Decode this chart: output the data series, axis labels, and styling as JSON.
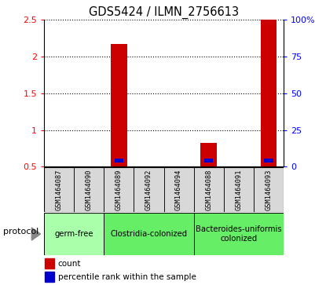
{
  "title": "GDS5424 / ILMN_2756613",
  "samples": [
    "GSM1464087",
    "GSM1464090",
    "GSM1464089",
    "GSM1464092",
    "GSM1464094",
    "GSM1464088",
    "GSM1464091",
    "GSM1464093"
  ],
  "count_values": [
    0.5,
    0.5,
    2.17,
    0.5,
    0.5,
    0.83,
    0.5,
    2.5
  ],
  "percentile_values": [
    0.0,
    0.0,
    0.075,
    0.0,
    0.0,
    0.075,
    0.0,
    0.075
  ],
  "bar_base": 0.5,
  "ylim": [
    0.5,
    2.5
  ],
  "yticks_left": [
    0.5,
    1.0,
    1.5,
    2.0,
    2.5
  ],
  "yticks_right": [
    0,
    25,
    50,
    75,
    100
  ],
  "count_color": "#cc0000",
  "percentile_color": "#0000cc",
  "legend_count_label": "count",
  "legend_percentile_label": "percentile rank within the sample",
  "protocol_label": "protocol",
  "bar_width": 0.55,
  "background_color": "#ffffff",
  "group_spans": [
    [
      0,
      1,
      "germ-free",
      "#aaffaa"
    ],
    [
      2,
      4,
      "Clostridia-colonized",
      "#66ee66"
    ],
    [
      5,
      7,
      "Bacteroides-uniformis\ncolonized",
      "#66ee66"
    ]
  ]
}
